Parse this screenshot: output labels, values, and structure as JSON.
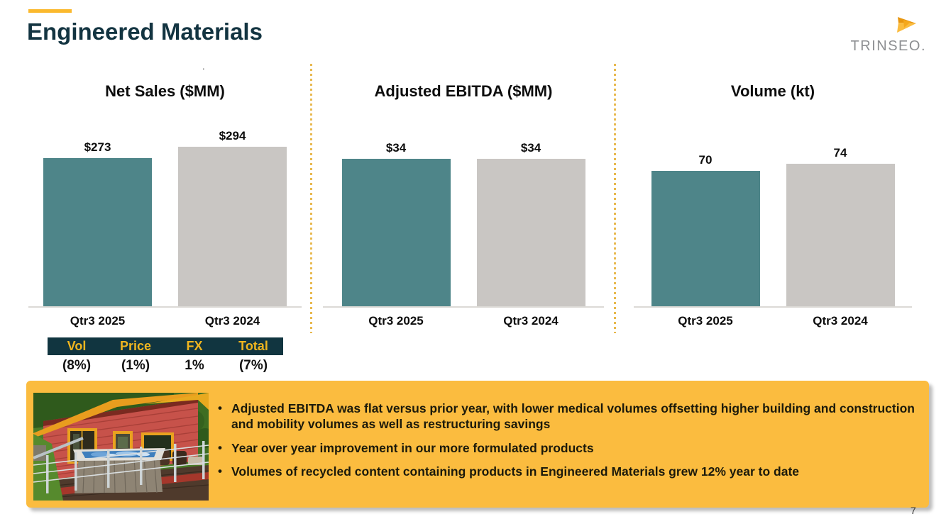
{
  "slide": {
    "title": "Engineered Materials",
    "logo_text": "TRINSEO.",
    "page_number": "7",
    "stray_mark": "."
  },
  "colors": {
    "accent_yellow": "#FBB92D",
    "title_teal": "#133441",
    "bar_current": "#4E8589",
    "bar_prior": "#C9C6C3",
    "table_header_bg": "#113540",
    "table_header_text": "#EFB51F",
    "callout_bg": "#FBBC3F",
    "divider_dots": "#E8B94F"
  },
  "chart_data": [
    {
      "type": "bar",
      "title": "Net Sales ($MM)",
      "categories": [
        "Qtr3 2025",
        "Qtr3 2024"
      ],
      "values": [
        273,
        294
      ],
      "labels": [
        "$273",
        "$294"
      ],
      "ylim": [
        0,
        320
      ],
      "grid": false,
      "legend": false
    },
    {
      "type": "bar",
      "title": "Adjusted EBITDA ($MM)",
      "categories": [
        "Qtr3 2025",
        "Qtr3 2024"
      ],
      "values": [
        34,
        34
      ],
      "labels": [
        "$34",
        "$34"
      ],
      "ylim": [
        0,
        40
      ],
      "grid": false,
      "legend": false
    },
    {
      "type": "bar",
      "title": "Volume (kt)",
      "categories": [
        "Qtr3 2025",
        "Qtr3 2024"
      ],
      "values": [
        70,
        74
      ],
      "labels": [
        "70",
        "74"
      ],
      "ylim": [
        0,
        90
      ],
      "grid": false,
      "legend": false
    }
  ],
  "bridge_table": {
    "headers": [
      "Vol",
      "Price",
      "FX",
      "Total"
    ],
    "values": [
      "(8%)",
      "(1%)",
      "1%",
      "(7%)"
    ]
  },
  "callout": {
    "bullets": [
      "Adjusted EBITDA was flat versus prior year, with lower medical volumes offsetting higher building and construction and mobility volumes as well as restructuring savings",
      "Year over year improvement in our more formulated products",
      "Volumes of recycled content containing products in Engineered Materials grew 12% year to date"
    ]
  }
}
